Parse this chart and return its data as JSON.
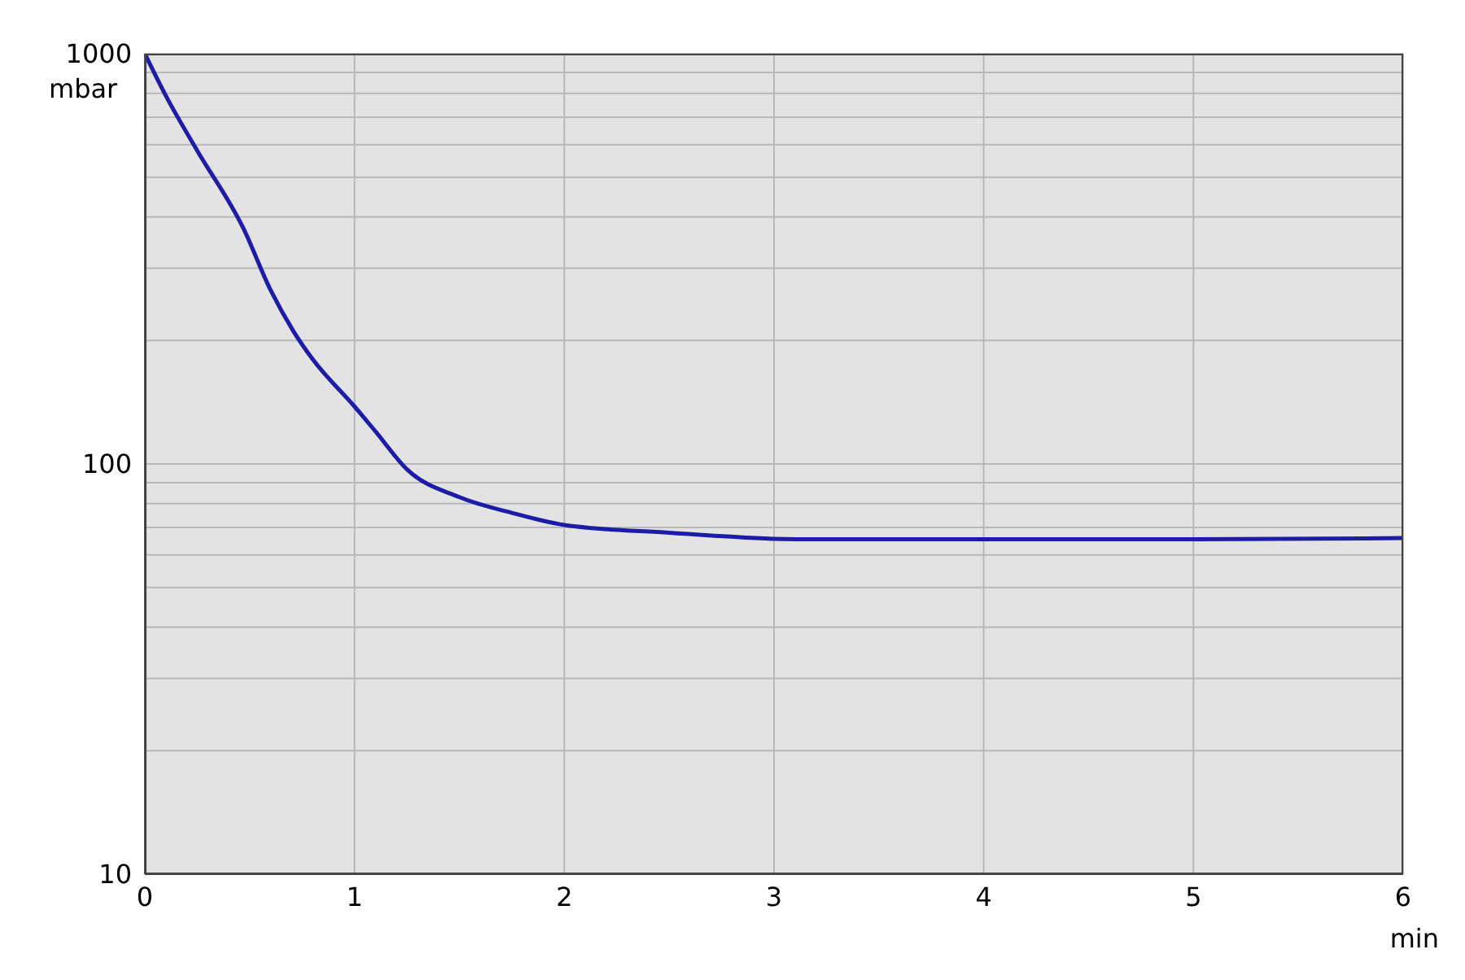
{
  "chart_data": {
    "type": "line",
    "xlabel": "min",
    "ylabel": "mbar",
    "log": "y",
    "grid": true,
    "x": [
      0,
      0.1,
      0.25,
      0.47,
      0.6,
      0.71,
      0.8,
      1.0,
      1.1,
      1.25,
      1.5,
      1.75,
      2.0,
      2.5,
      3.15,
      4,
      5,
      6
    ],
    "series": [
      {
        "color": "#1c1ca8",
        "values": [
          1000,
          790,
          580,
          375,
          265,
          210,
          180,
          138,
          120,
          97,
          83,
          76,
          71,
          68,
          65.5,
          65.5,
          65.5,
          66
        ]
      }
    ],
    "xlim": [
      0,
      6
    ],
    "xticks": [
      0,
      1,
      2,
      3,
      4,
      5,
      6
    ],
    "ylim": [
      10,
      1000
    ],
    "yticks": [
      10,
      {
        "value": 20,
        "label": null
      },
      {
        "value": 30,
        "label": null
      },
      {
        "value": 40,
        "label": null
      },
      {
        "value": 50,
        "label": null
      },
      {
        "value": 60,
        "label": null
      },
      {
        "value": 70,
        "label": null
      },
      {
        "value": 80,
        "label": null
      },
      {
        "value": 90,
        "label": null
      },
      100,
      {
        "value": 200,
        "label": null
      },
      {
        "value": 300,
        "label": null
      },
      {
        "value": 400,
        "label": null
      },
      {
        "value": 500,
        "label": null
      },
      {
        "value": 600,
        "label": null
      },
      {
        "value": 700,
        "label": null
      },
      {
        "value": 800,
        "label": null
      },
      {
        "value": 900,
        "label": null
      },
      1000
    ]
  }
}
